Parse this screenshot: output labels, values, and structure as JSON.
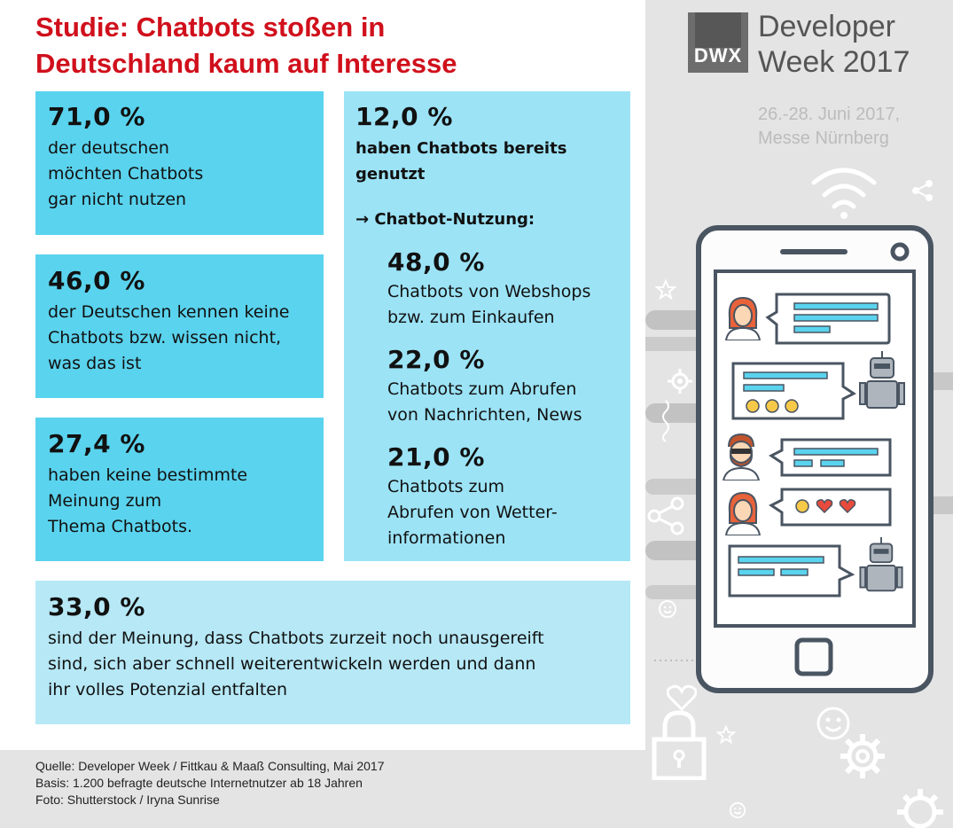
{
  "title_line1": "Studie: Chatbots stoßen in",
  "title_line2": "Deutschland kaum auf Interesse",
  "boxes": [
    {
      "percent": "71,0 %",
      "lines": [
        "der deutschen",
        "möchten Chatbots",
        "gar nicht nutzen"
      ]
    },
    {
      "percent": "46,0 %",
      "lines": [
        "der Deutschen kennen keine",
        "Chatbots bzw. wissen nicht,",
        "was das ist"
      ]
    },
    {
      "percent": "27,4 %",
      "lines": [
        "haben keine bestimmte",
        "Meinung zum",
        "Thema Chatbots."
      ]
    },
    {
      "percent": "12,0 %",
      "lines": [
        "haben Chatbots bereits",
        "genutzt"
      ]
    },
    {
      "percent": "33,0 %",
      "lines": [
        "sind der Meinung, dass Chatbots zurzeit noch unausgereift",
        "sind, sich aber schnell weiterentwickeln werden und dann",
        "ihr volles Potenzial entfalten"
      ]
    }
  ],
  "usage_heading": "→ Chatbot-Nutzung:",
  "usage": [
    {
      "percent": "48,0 %",
      "lines": [
        "Chatbots von Webshops",
        "bzw. zum Einkaufen"
      ]
    },
    {
      "percent": "22,0 %",
      "lines": [
        "Chatbots zum Abrufen",
        "von Nachrichten, News"
      ]
    },
    {
      "percent": "21,0 %",
      "lines": [
        "Chatbots zum",
        "Abrufen von Wetter-",
        "informationen"
      ]
    }
  ],
  "sources": [
    "Quelle: Developer Week / Fittkau & Maaß Consulting, Mai 2017",
    "Basis: 1.200 befragte deutsche Internetnutzer ab 18 Jahren",
    "Foto: Shutterstock / Iryna Sunrise"
  ],
  "logo": {
    "mark": "DWX",
    "title_line1": "Developer",
    "title_line2": "Week 2017"
  },
  "event": {
    "line1": "26.-28. Juni 2017,",
    "line2": "Messe Nürnberg"
  },
  "colors": {
    "title_red": "#d0101c",
    "box_cyan": "#5ad3ee",
    "box_light": "#9ce3f6",
    "box_pale": "#b6e8f6",
    "panel_gray": "#e4e4e4"
  },
  "icons": [
    "wifi-icon",
    "share-icon",
    "star-icon",
    "gear-icon",
    "heart-icon",
    "smiley-icon",
    "padlock-icon",
    "woman-avatar-icon",
    "robot-avatar-icon",
    "bearded-man-avatar-icon",
    "emoji-smile-icon",
    "heart-reaction-icon",
    "home-button-icon",
    "camera-icon"
  ]
}
